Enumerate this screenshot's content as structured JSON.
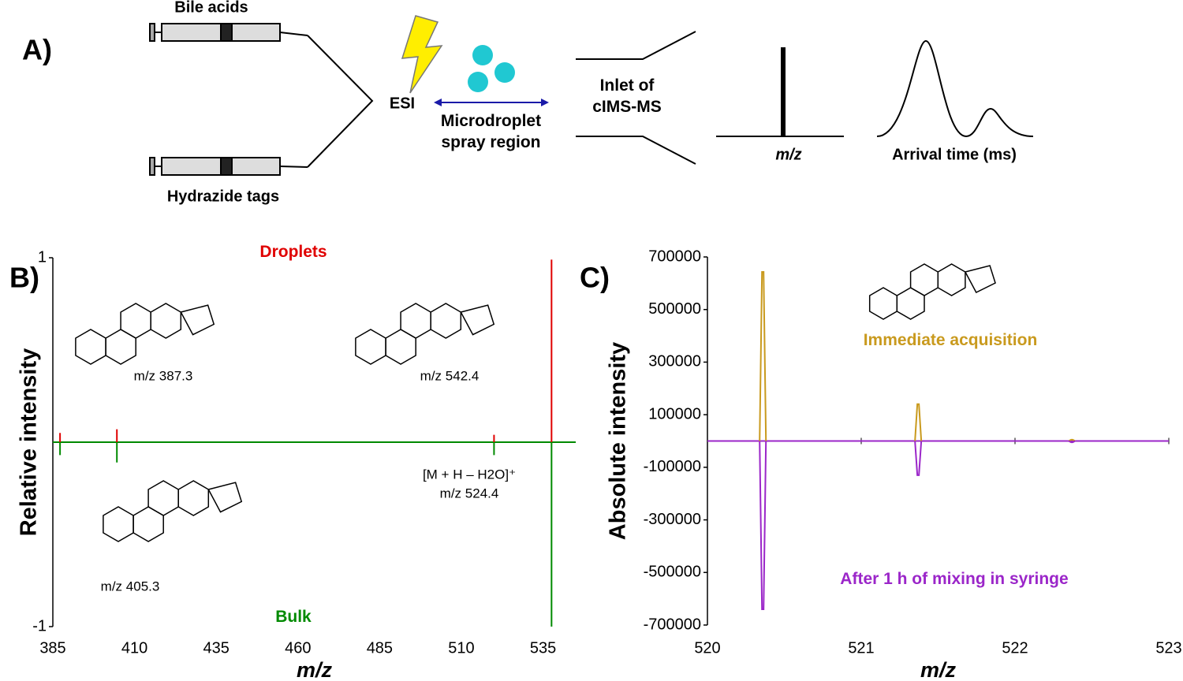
{
  "panel_a": {
    "label": "A)",
    "syringe_top": "Bile acids",
    "syringe_bottom": "Hydrazide tags",
    "source": "ESI",
    "region": "Microdroplet spray region",
    "inlet": "Inlet of cIMS-MS",
    "spectrum_label": "m/z",
    "mobility_label": "Arrival time (ms)"
  },
  "chart_data": [
    {
      "type": "stem",
      "panel_label": "B)",
      "xlabel": "m/z",
      "ylabel": "Relative intensity",
      "x": [
        387.2,
        404.6,
        520,
        537.6
      ],
      "series": [
        {
          "name": "Droplets",
          "color": "#e00000",
          "values": [
            0.05,
            0.07,
            0.04,
            0.99
          ]
        },
        {
          "name": "Bulk",
          "color": "#008a00",
          "values": [
            -0.07,
            -0.11,
            -0.07,
            -1.0
          ]
        }
      ],
      "xlim": [
        385,
        545
      ],
      "xticks": [
        385,
        410,
        435,
        460,
        485,
        510,
        535
      ],
      "ylim": [
        -1,
        1
      ],
      "yticks": [
        -1,
        1
      ],
      "annotations": [
        "m/z 387.3",
        "m/z 542.4",
        "m/z 405.3",
        "[M + H – H2O]⁺",
        "m/z 524.4"
      ]
    },
    {
      "type": "spike",
      "panel_label": "C)",
      "xlabel": "m/z",
      "ylabel": "Absolute intensity",
      "x": [
        520.36,
        521.37,
        522.37
      ],
      "series": [
        {
          "name": "Immediate acquisition",
          "color": "#c99a1e",
          "values": [
            643000,
            140000,
            5000
          ]
        },
        {
          "name": "After 1 h of mixing in syringe",
          "color": "#9b26c9",
          "values": [
            -640000,
            -130000,
            -5000
          ]
        }
      ],
      "xlim": [
        520,
        523
      ],
      "xticks": [
        520,
        521,
        522,
        523
      ],
      "ylim": [
        -700000,
        700000
      ],
      "yticks": [
        700000,
        500000,
        300000,
        100000,
        -100000,
        -300000,
        -500000,
        -700000
      ]
    }
  ]
}
